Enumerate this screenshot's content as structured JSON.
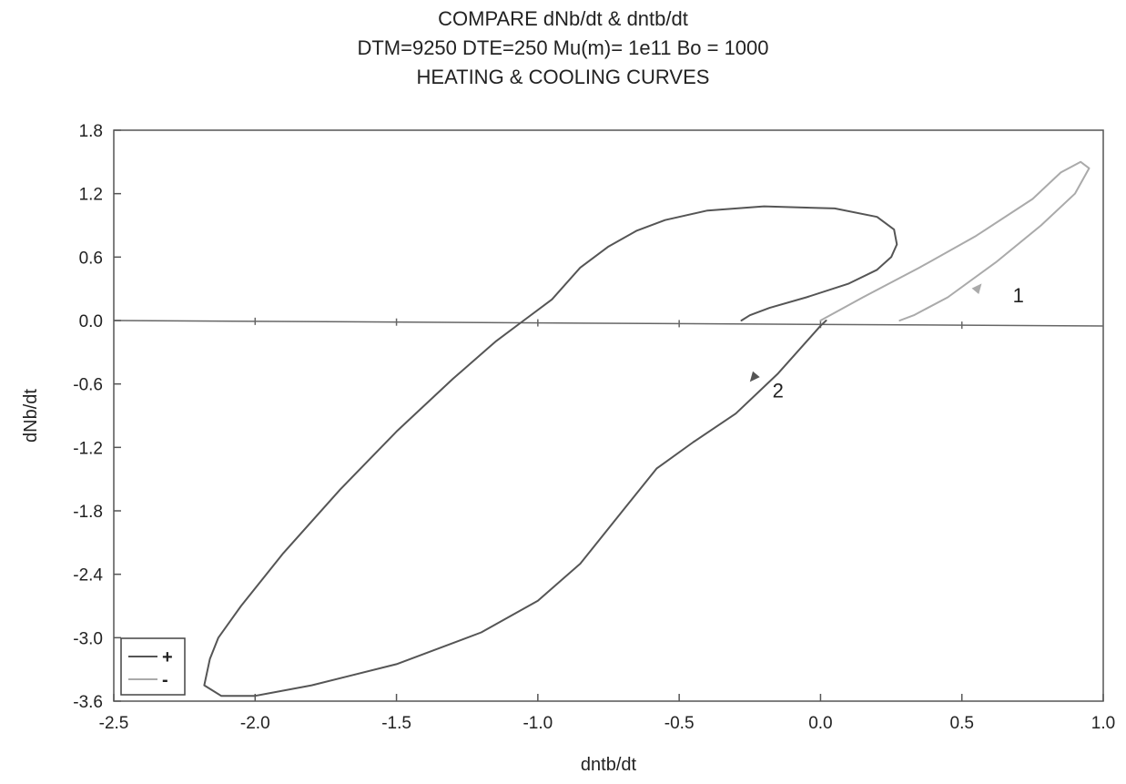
{
  "chart_data": {
    "type": "line",
    "title_lines": [
      "COMPARE dNb/dt & dntb/dt",
      "DTM=9250 DTE=250 Mu(m)= 1e11 Bo = 1000",
      "HEATING & COOLING CURVES"
    ],
    "xlabel": "dntb/dt",
    "ylabel": "dNb/dt",
    "xlim": [
      -2.5,
      1.0
    ],
    "ylim": [
      -3.6,
      1.8
    ],
    "x_ticks": [
      "-2.5",
      "-2.0",
      "-1.5",
      "-1.0",
      "-0.5",
      "0.0",
      "0.5",
      "1.0"
    ],
    "y_ticks": [
      "1.8",
      "1.2",
      "0.6",
      "0.0",
      "-0.6",
      "-1.2",
      "-1.8",
      "-2.4",
      "-3.0",
      "-3.6"
    ],
    "x_tick_values": [
      -2.5,
      -2.0,
      -1.5,
      -1.0,
      -0.5,
      0.0,
      0.5,
      1.0
    ],
    "y_tick_values": [
      1.8,
      1.2,
      0.6,
      0.0,
      -0.6,
      -1.2,
      -1.8,
      -2.4,
      -3.0,
      -3.6
    ],
    "grid": false,
    "legend_position": "bottom-left",
    "series": [
      {
        "name": "+",
        "color": "#555555",
        "points": [
          [
            -0.28,
            0.0
          ],
          [
            -0.25,
            0.05
          ],
          [
            -0.18,
            0.12
          ],
          [
            -0.05,
            0.22
          ],
          [
            0.1,
            0.35
          ],
          [
            0.2,
            0.48
          ],
          [
            0.25,
            0.6
          ],
          [
            0.27,
            0.72
          ],
          [
            0.26,
            0.86
          ],
          [
            0.2,
            0.98
          ],
          [
            0.05,
            1.06
          ],
          [
            -0.2,
            1.08
          ],
          [
            -0.4,
            1.04
          ],
          [
            -0.55,
            0.95
          ],
          [
            -0.65,
            0.85
          ],
          [
            -0.75,
            0.7
          ],
          [
            -0.85,
            0.5
          ],
          [
            -0.95,
            0.2
          ],
          [
            -1.05,
            0.0
          ],
          [
            -1.15,
            -0.2
          ],
          [
            -1.3,
            -0.55
          ],
          [
            -1.5,
            -1.05
          ],
          [
            -1.7,
            -1.6
          ],
          [
            -1.9,
            -2.2
          ],
          [
            -2.05,
            -2.7
          ],
          [
            -2.13,
            -3.0
          ],
          [
            -2.16,
            -3.2
          ],
          [
            -2.18,
            -3.45
          ],
          [
            -2.12,
            -3.55
          ],
          [
            -2.0,
            -3.55
          ],
          [
            -1.8,
            -3.45
          ],
          [
            -1.5,
            -3.25
          ],
          [
            -1.2,
            -2.95
          ],
          [
            -1.0,
            -2.65
          ],
          [
            -0.85,
            -2.3
          ],
          [
            -0.7,
            -1.8
          ],
          [
            -0.58,
            -1.4
          ],
          [
            -0.45,
            -1.15
          ],
          [
            -0.3,
            -0.88
          ],
          [
            -0.15,
            -0.5
          ],
          [
            -0.05,
            -0.2
          ],
          [
            0.0,
            -0.05
          ],
          [
            0.02,
            0.0
          ]
        ]
      },
      {
        "name": "-",
        "color": "#aaaaaa",
        "points": [
          [
            0.0,
            0.0
          ],
          [
            0.15,
            0.22
          ],
          [
            0.35,
            0.5
          ],
          [
            0.55,
            0.8
          ],
          [
            0.75,
            1.15
          ],
          [
            0.85,
            1.4
          ],
          [
            0.92,
            1.5
          ],
          [
            0.95,
            1.44
          ],
          [
            0.9,
            1.2
          ],
          [
            0.78,
            0.9
          ],
          [
            0.62,
            0.55
          ],
          [
            0.45,
            0.22
          ],
          [
            0.33,
            0.05
          ],
          [
            0.28,
            0.0
          ]
        ]
      }
    ],
    "annotations": [
      {
        "text": "1",
        "x": 0.68,
        "y": 0.24
      },
      {
        "text": "2",
        "x": -0.17,
        "y": -0.66
      }
    ],
    "arrows": [
      {
        "series": "-",
        "x": 0.57,
        "y": 0.35,
        "direction": "up-right"
      },
      {
        "series": "+",
        "x": -0.25,
        "y": -0.58,
        "direction": "down-left"
      }
    ]
  }
}
